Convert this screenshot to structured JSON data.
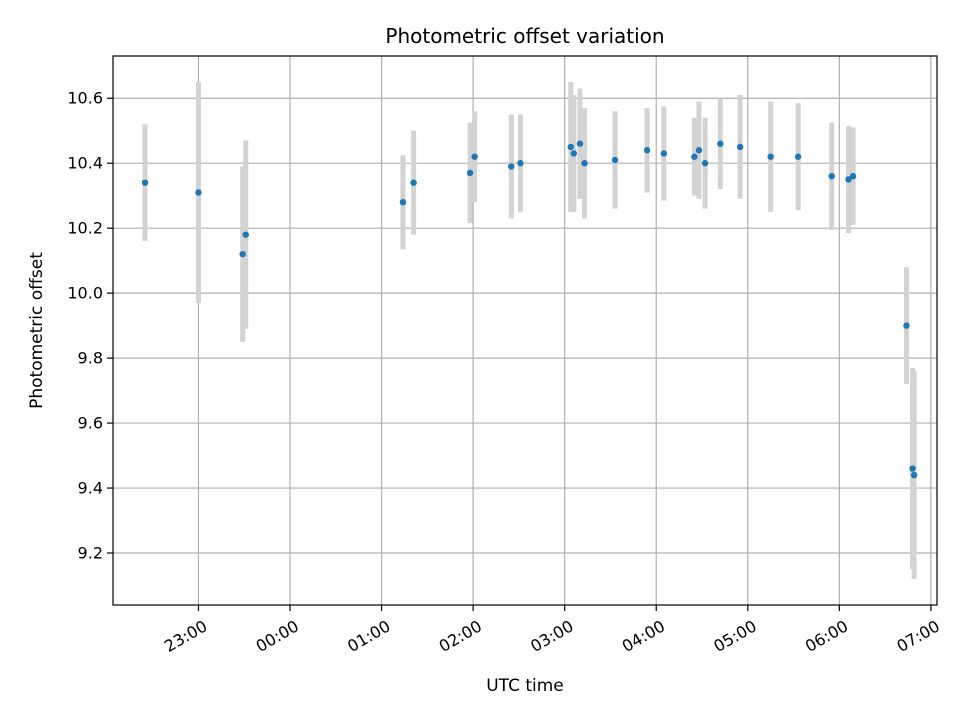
{
  "chart_data": {
    "type": "scatter",
    "title": "Photometric offset variation",
    "xlabel": "UTC time",
    "ylabel": "Photometric offset",
    "x_axis": "time (UTC, HH:MM); night starts on day 0, times after midnight on day 1",
    "xlim": [
      "22:04",
      "07:04"
    ],
    "ylim": [
      9.04,
      10.73
    ],
    "x_ticks": [
      "23:00",
      "00:00",
      "01:00",
      "02:00",
      "03:00",
      "04:00",
      "05:00",
      "06:00",
      "07:00"
    ],
    "y_ticks": [
      9.2,
      9.4,
      9.6,
      9.8,
      10.0,
      10.2,
      10.4,
      10.6
    ],
    "grid": true,
    "marker_color": "#1f77b4",
    "errorbar_color": "#d3d3d3",
    "points": [
      {
        "time": "22:25",
        "day": 0,
        "y": 10.34,
        "err": 0.18
      },
      {
        "time": "23:00",
        "day": 0,
        "y": 10.31,
        "err": 0.34
      },
      {
        "time": "23:29",
        "day": 0,
        "y": 10.12,
        "err": 0.27
      },
      {
        "time": "23:31",
        "day": 0,
        "y": 10.18,
        "err": 0.29
      },
      {
        "time": "01:14",
        "day": 1,
        "y": 10.28,
        "err": 0.145
      },
      {
        "time": "01:21",
        "day": 1,
        "y": 10.34,
        "err": 0.16
      },
      {
        "time": "01:58",
        "day": 1,
        "y": 10.37,
        "err": 0.155
      },
      {
        "time": "02:01",
        "day": 1,
        "y": 10.42,
        "err": 0.14
      },
      {
        "time": "02:25",
        "day": 1,
        "y": 10.39,
        "err": 0.16
      },
      {
        "time": "02:31",
        "day": 1,
        "y": 10.4,
        "err": 0.15
      },
      {
        "time": "03:04",
        "day": 1,
        "y": 10.45,
        "err": 0.2
      },
      {
        "time": "03:06",
        "day": 1,
        "y": 10.43,
        "err": 0.18
      },
      {
        "time": "03:10",
        "day": 1,
        "y": 10.46,
        "err": 0.17
      },
      {
        "time": "03:13",
        "day": 1,
        "y": 10.4,
        "err": 0.17
      },
      {
        "time": "03:33",
        "day": 1,
        "y": 10.41,
        "err": 0.15
      },
      {
        "time": "03:54",
        "day": 1,
        "y": 10.44,
        "err": 0.13
      },
      {
        "time": "04:05",
        "day": 1,
        "y": 10.43,
        "err": 0.145
      },
      {
        "time": "04:25",
        "day": 1,
        "y": 10.42,
        "err": 0.12
      },
      {
        "time": "04:28",
        "day": 1,
        "y": 10.44,
        "err": 0.15
      },
      {
        "time": "04:32",
        "day": 1,
        "y": 10.4,
        "err": 0.14
      },
      {
        "time": "04:42",
        "day": 1,
        "y": 10.46,
        "err": 0.14
      },
      {
        "time": "04:55",
        "day": 1,
        "y": 10.45,
        "err": 0.16
      },
      {
        "time": "05:15",
        "day": 1,
        "y": 10.42,
        "err": 0.17
      },
      {
        "time": "05:33",
        "day": 1,
        "y": 10.42,
        "err": 0.165
      },
      {
        "time": "05:55",
        "day": 1,
        "y": 10.36,
        "err": 0.165
      },
      {
        "time": "06:06",
        "day": 1,
        "y": 10.35,
        "err": 0.165
      },
      {
        "time": "06:09",
        "day": 1,
        "y": 10.36,
        "err": 0.15
      },
      {
        "time": "06:44",
        "day": 1,
        "y": 9.9,
        "err": 0.18
      },
      {
        "time": "06:48",
        "day": 1,
        "y": 9.46,
        "err": 0.31
      },
      {
        "time": "06:49",
        "day": 1,
        "y": 9.44,
        "err": 0.32
      }
    ]
  }
}
